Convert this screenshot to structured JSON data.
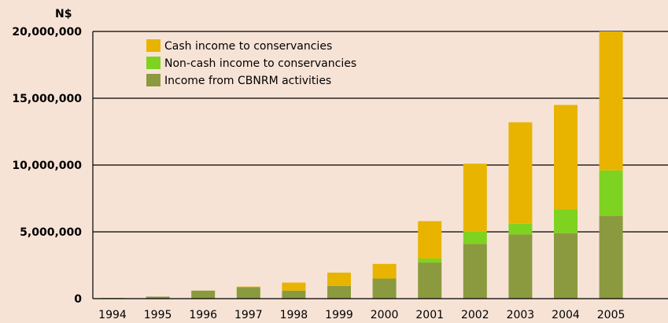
{
  "chart_data": {
    "type": "bar",
    "stacked": true,
    "title": "",
    "xlabel": "",
    "ylabel": "N$",
    "ylim": [
      0,
      20000000
    ],
    "yticks": [
      0,
      5000000,
      10000000,
      15000000,
      20000000
    ],
    "ytick_labels": [
      "0",
      "5,000,000",
      "10,000,000",
      "15,000,000",
      "20,000,000"
    ],
    "grid": "horizontal",
    "legend_position": "top-left",
    "categories": [
      "1994",
      "1995",
      "1996",
      "1997",
      "1998",
      "1999",
      "2000",
      "2001",
      "2002",
      "2003",
      "2004",
      "2005"
    ],
    "series": [
      {
        "name": "Income from CBNRM activities",
        "color": "#8b9a3e",
        "values": [
          50000,
          150000,
          600000,
          850000,
          600000,
          950000,
          1500000,
          2700000,
          4100000,
          4800000,
          4900000,
          6200000
        ]
      },
      {
        "name": "Non-cash income to conservancies",
        "color": "#7ed321",
        "values": [
          0,
          0,
          0,
          0,
          0,
          0,
          0,
          300000,
          900000,
          800000,
          1800000,
          3400000
        ]
      },
      {
        "name": "Cash income to conservancies",
        "color": "#e8b400",
        "values": [
          0,
          0,
          0,
          50000,
          600000,
          1000000,
          1100000,
          2800000,
          5100000,
          7600000,
          7800000,
          10400000
        ]
      }
    ],
    "legend_order": [
      "Cash income to conservancies",
      "Non-cash income to conservancies",
      "Income from CBNRM activities"
    ]
  }
}
